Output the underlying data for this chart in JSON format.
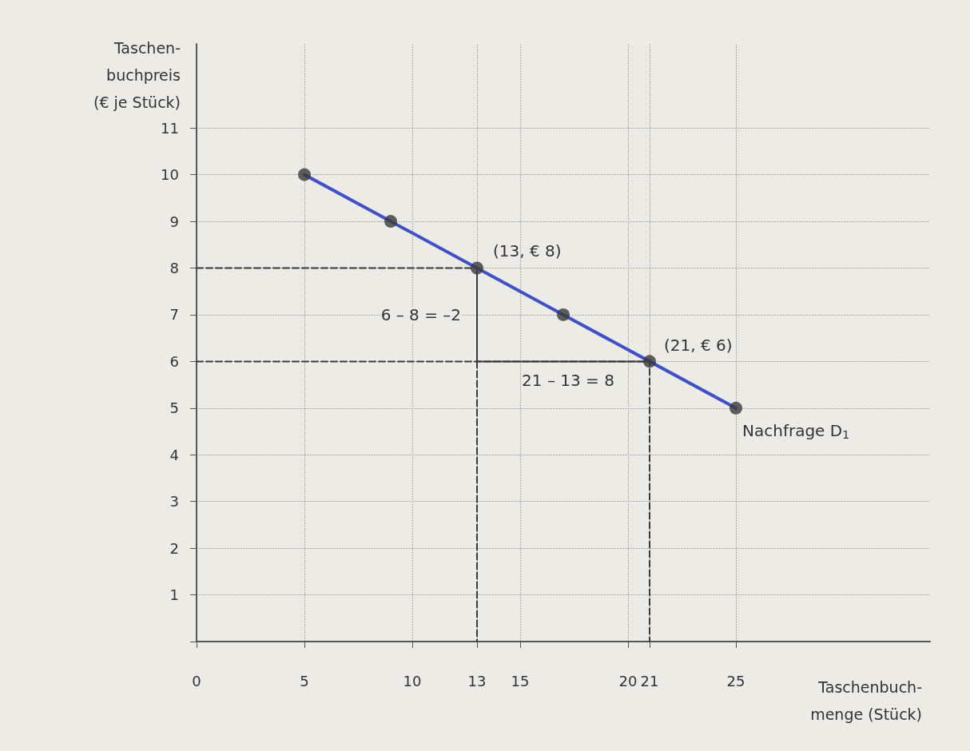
{
  "chart_data": {
    "type": "line",
    "xlabel": "Taschenbuch-\nmenge (Stück)",
    "ylabel": "Taschen-\nbuchpreis\n(€ je Stück)",
    "xlim": [
      0,
      34
    ],
    "ylim": [
      0,
      12.8
    ],
    "xticks": [
      0,
      5,
      10,
      13,
      15,
      20,
      21,
      25
    ],
    "yticks": [
      {
        "value": 0,
        "label": null
      },
      1,
      2,
      3,
      4,
      5,
      6,
      7,
      8,
      9,
      10,
      11
    ],
    "grid": true,
    "series": [
      {
        "name": "Nachfrage D$_{1}$",
        "color": "#3f51c8",
        "x": [
          5,
          9,
          13,
          17,
          21,
          25
        ],
        "values": [
          10,
          9,
          8,
          7,
          6,
          5
        ],
        "marker": "none",
        "line_style": "solid"
      },
      {
        "type": "scatter",
        "color": "#3a3a3a",
        "x": [
          5,
          9,
          13,
          17,
          21,
          25
        ],
        "values": [
          10,
          9,
          8,
          7,
          6,
          5
        ],
        "marker": "circle"
      },
      {
        "color": "#3a3a3a",
        "x": [
          0,
          13,
          13
        ],
        "values": [
          8,
          8,
          0
        ],
        "marker": "none",
        "line_style": "dashed"
      },
      {
        "color": "#3a3a3a",
        "x": [
          0,
          21,
          21
        ],
        "values": [
          6,
          6,
          0
        ],
        "marker": "none",
        "line_style": "dashed"
      },
      {
        "color": "#3a3a3a",
        "x": [
          13,
          13,
          21
        ],
        "values": [
          8,
          6,
          6
        ],
        "marker": "none",
        "line_style": "solid"
      }
    ],
    "annotations": [
      {
        "text": "(13, € 8)",
        "x": 13,
        "y": 8
      },
      {
        "text": "(21, € 6)",
        "x": 21,
        "y": 6
      },
      {
        "text": "6 – 8 = –2",
        "x": 13,
        "y": 7
      },
      {
        "text": "21 – 13 = 8",
        "x": 17,
        "y": 6
      }
    ]
  }
}
